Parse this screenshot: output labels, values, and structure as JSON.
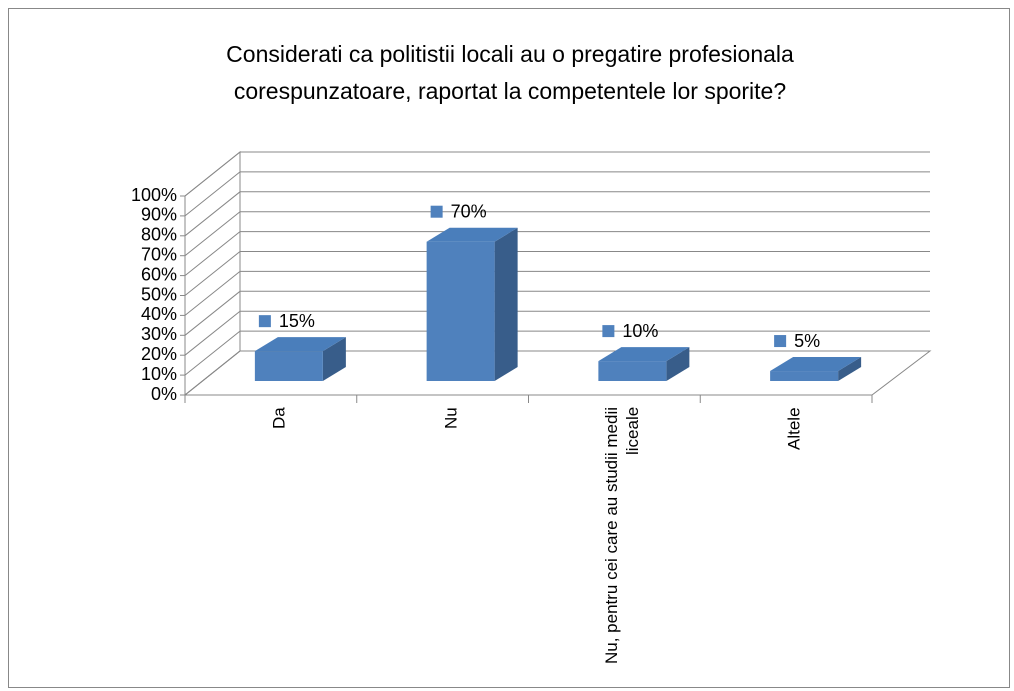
{
  "chart_data": {
    "type": "bar3d",
    "title": "Considerati ca politistii locali au o pregatire profesionala corespunzatoare, raportat la competentele lor sporite?",
    "categories": [
      "Da",
      "Nu",
      "Nu, pentru cei care au studii medii liceale",
      "Altele"
    ],
    "values": [
      15,
      70,
      10,
      5
    ],
    "value_labels": [
      "15%",
      "70%",
      "10%",
      "5%"
    ],
    "color": "#4f81bd",
    "ylim": [
      0,
      100
    ],
    "yticks": [
      {
        "value": 0,
        "label": "0%"
      },
      {
        "value": 10,
        "label": "10%"
      },
      {
        "value": 20,
        "label": "20%"
      },
      {
        "value": 30,
        "label": "30%"
      },
      {
        "value": 40,
        "label": "40%"
      },
      {
        "value": 50,
        "label": "50%"
      },
      {
        "value": 60,
        "label": "60%"
      },
      {
        "value": 70,
        "label": "70%"
      },
      {
        "value": 80,
        "label": "80%"
      },
      {
        "value": 90,
        "label": "90%"
      },
      {
        "value": 100,
        "label": "100%"
      }
    ],
    "grid": true
  }
}
